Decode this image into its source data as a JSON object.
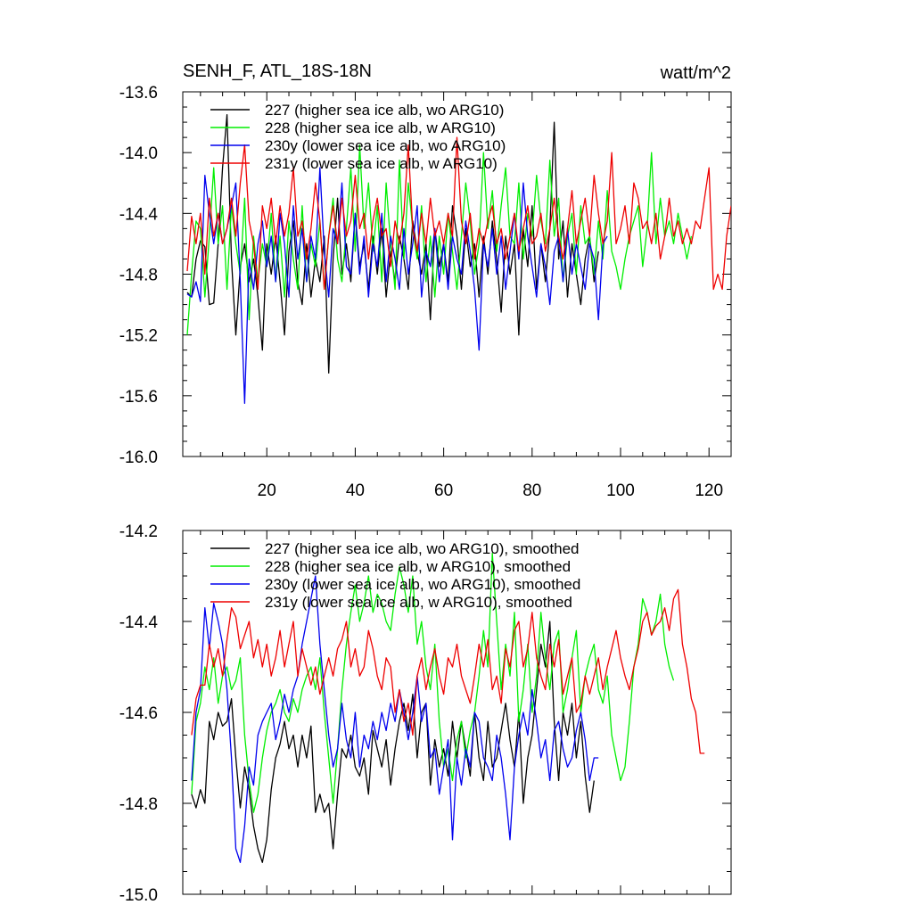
{
  "chart_data": [
    {
      "type": "line",
      "title": "SENH_F, ATL_18S-18N",
      "units": "watt/m^2",
      "xlim": [
        1,
        125
      ],
      "ylim": [
        -16.0,
        -13.6
      ],
      "xticks": [
        20,
        40,
        60,
        80,
        100,
        120
      ],
      "xtick_labels": [
        "20",
        "40",
        "60",
        "80",
        "100",
        "120"
      ],
      "yticks": [
        -16.0,
        -15.6,
        -15.2,
        -14.8,
        -14.4,
        -14.0,
        -13.6
      ],
      "ytick_labels": [
        "-16.0",
        "-15.6",
        "-15.2",
        "-14.8",
        "-14.4",
        "-14.0",
        "-13.6"
      ],
      "legend_position": "top-left",
      "series": [
        {
          "name": "227 (higher sea ice alb, wo ARG10)",
          "color": "#000000",
          "x_start": 2,
          "values": [
            -14.92,
            -14.95,
            -14.7,
            -14.58,
            -14.62,
            -15.0,
            -14.99,
            -14.6,
            -14.1,
            -13.75,
            -14.7,
            -15.2,
            -14.75,
            -14.6,
            -14.85,
            -14.7,
            -14.95,
            -15.3,
            -14.6,
            -14.8,
            -14.55,
            -14.85,
            -15.2,
            -14.65,
            -14.45,
            -14.85,
            -15.0,
            -14.6,
            -14.95,
            -14.7,
            -14.85,
            -14.55,
            -15.45,
            -14.7,
            -14.3,
            -14.8,
            -14.6,
            -14.85,
            -14.4,
            -14.75,
            -14.6,
            -14.9,
            -14.55,
            -14.8,
            -14.5,
            -14.95,
            -14.65,
            -14.85,
            -14.55,
            -14.7,
            -14.9,
            -14.45,
            -14.65,
            -14.8,
            -14.6,
            -15.1,
            -14.5,
            -14.75,
            -14.6,
            -14.85,
            -14.35,
            -14.55,
            -14.9,
            -14.5,
            -14.75,
            -14.6,
            -14.95,
            -14.55,
            -14.8,
            -14.45,
            -14.7,
            -15.05,
            -14.55,
            -14.8,
            -14.6,
            -15.2,
            -14.5,
            -14.75,
            -14.35,
            -14.9,
            -14.6,
            -14.85,
            -14.5,
            -13.8,
            -14.7,
            -14.45,
            -14.95,
            -14.6,
            -14.8,
            -15.0,
            -14.7,
            -14.55,
            -14.85,
            -14.65
          ]
        },
        {
          "name": "228 (higher sea ice alb, w ARG10)",
          "color": "#00ee00",
          "x_start": 2,
          "values": [
            -15.2,
            -14.8,
            -14.45,
            -14.5,
            -14.95,
            -14.55,
            -14.1,
            -14.6,
            -14.35,
            -14.9,
            -14.35,
            -14.6,
            -14.8,
            -14.3,
            -15.1,
            -14.55,
            -14.85,
            -14.6,
            -14.75,
            -14.4,
            -14.85,
            -14.55,
            -14.95,
            -14.45,
            -14.7,
            -14.9,
            -14.35,
            -14.85,
            -14.6,
            -14.75,
            -14.45,
            -14.9,
            -14.55,
            -14.3,
            -14.7,
            -14.85,
            -14.5,
            -14.1,
            -14.65,
            -13.95,
            -14.5,
            -14.2,
            -14.65,
            -14.35,
            -14.85,
            -14.2,
            -14.6,
            -14.9,
            -14.05,
            -14.7,
            -14.2,
            -14.5,
            -14.7,
            -14.35,
            -14.85,
            -14.55,
            -14.95,
            -14.55,
            -14.8,
            -14.4,
            -14.65,
            -14.9,
            -14.55,
            -14.2,
            -14.45,
            -14.8,
            -14.6,
            -14.0,
            -14.5,
            -14.25,
            -14.65,
            -14.35,
            -14.1,
            -14.55,
            -14.6,
            -14.2,
            -14.7,
            -14.4,
            -14.55,
            -14.15,
            -14.45,
            -14.6,
            -14.05,
            -14.55,
            -14.3,
            -14.85,
            -14.55,
            -14.4,
            -14.8,
            -14.35,
            -14.6,
            -14.55,
            -14.8,
            -14.45,
            -14.7,
            -14.25,
            -14.65,
            -14.75,
            -14.9,
            -14.7,
            -14.55,
            -14.45,
            -14.35,
            -14.75,
            -14.5,
            -14.0,
            -14.6,
            -14.3,
            -14.55,
            -14.45,
            -14.6,
            -14.4,
            -14.55,
            -14.7,
            -14.55
          ]
        },
        {
          "name": "230y (lower sea ice alb, wo ARG10)",
          "color": "#0000ee",
          "x_start": 2,
          "values": [
            -14.93,
            -14.95,
            -14.85,
            -14.98,
            -14.15,
            -14.4,
            -14.6,
            -14.4,
            -14.6,
            -14.5,
            -14.35,
            -14.2,
            -14.85,
            -15.65,
            -14.7,
            -14.9,
            -14.6,
            -14.45,
            -14.75,
            -14.55,
            -14.85,
            -14.4,
            -14.6,
            -14.95,
            -14.35,
            -14.7,
            -14.5,
            -14.85,
            -14.55,
            -14.7,
            -14.1,
            -14.65,
            -14.95,
            -14.5,
            -14.6,
            -14.2,
            -14.75,
            -14.8,
            -14.4,
            -14.8,
            -14.55,
            -14.95,
            -14.6,
            -14.75,
            -14.4,
            -14.85,
            -14.55,
            -14.7,
            -14.9,
            -14.5,
            -14.8,
            -14.6,
            -14.35,
            -14.95,
            -14.65,
            -14.75,
            -14.5,
            -14.85,
            -14.6,
            -14.9,
            -14.55,
            -14.7,
            -14.8,
            -14.45,
            -14.65,
            -14.9,
            -15.3,
            -14.6,
            -14.75,
            -14.5,
            -14.8,
            -14.55,
            -14.9,
            -14.65,
            -14.4,
            -14.7,
            -14.2,
            -14.55,
            -14.75,
            -14.95,
            -14.6,
            -14.75,
            -15.0,
            -14.65,
            -14.55,
            -14.85,
            -14.5,
            -14.8,
            -14.6,
            -14.75,
            -14.9,
            -14.6,
            -14.7,
            -15.1,
            -14.6,
            -14.55
          ]
        },
        {
          "name": "231y (lower sea ice alb, w ARG10)",
          "color": "#ee0000",
          "x_start": 2,
          "values": [
            -14.78,
            -14.42,
            -14.6,
            -14.4,
            -14.8,
            -14.3,
            -14.55,
            -14.4,
            -14.6,
            -14.5,
            -14.3,
            -14.55,
            -14.2,
            -13.95,
            -14.45,
            -14.6,
            -14.9,
            -14.35,
            -14.5,
            -14.3,
            -14.6,
            -14.35,
            -14.55,
            -14.4,
            -14.1,
            -14.55,
            -14.45,
            -14.7,
            -14.5,
            -14.2,
            -14.45,
            -14.9,
            -14.55,
            -14.35,
            -14.6,
            -14.3,
            -14.55,
            -14.45,
            -14.15,
            -14.5,
            -14.4,
            -14.7,
            -14.45,
            -14.3,
            -14.55,
            -14.5,
            -14.75,
            -14.45,
            -14.6,
            -14.4,
            -13.95,
            -14.5,
            -14.65,
            -14.4,
            -14.6,
            -14.3,
            -14.55,
            -14.45,
            -14.6,
            -14.4,
            -14.55,
            -13.9,
            -14.45,
            -14.6,
            -14.4,
            -14.7,
            -14.5,
            -14.6,
            -14.45,
            -14.35,
            -14.6,
            -14.5,
            -14.7,
            -14.55,
            -14.4,
            -14.65,
            -14.5,
            -14.35,
            -14.6,
            -14.55,
            -14.4,
            -14.65,
            -14.5,
            -14.3,
            -14.55,
            -14.7,
            -14.5,
            -14.25,
            -14.6,
            -14.45,
            -14.3,
            -14.55,
            -14.15,
            -14.4,
            -14.6,
            -14.45,
            -14.0,
            -14.6,
            -14.5,
            -14.35,
            -14.6,
            -14.2,
            -14.3,
            -14.5,
            -14.45,
            -14.6,
            -14.4,
            -14.7,
            -14.55,
            -14.3,
            -14.55,
            -14.45,
            -14.6,
            -14.5,
            -14.6,
            -14.45,
            -14.5,
            -14.3,
            -14.1,
            -14.9,
            -14.8,
            -14.9,
            -14.55,
            -14.35
          ]
        }
      ]
    },
    {
      "type": "line",
      "xlim": [
        1,
        125
      ],
      "ylim": [
        -15.0,
        -14.2
      ],
      "xticks": [
        20,
        40,
        60,
        80,
        100,
        120
      ],
      "yticks": [
        -15.0,
        -14.8,
        -14.6,
        -14.4,
        -14.2
      ],
      "ytick_labels": [
        "-15.0",
        "-14.8",
        "-14.6",
        "-14.4",
        "-14.2"
      ],
      "legend_position": "top-left",
      "series": [
        {
          "name": "227 (higher sea ice alb, wo ARG10), smoothed",
          "color": "#000000",
          "x_start": 3,
          "values": [
            -14.78,
            -14.81,
            -14.77,
            -14.8,
            -14.62,
            -14.66,
            -14.6,
            -14.63,
            -14.62,
            -14.57,
            -14.7,
            -14.81,
            -14.72,
            -14.77,
            -14.85,
            -14.9,
            -14.93,
            -14.88,
            -14.77,
            -14.7,
            -14.67,
            -14.62,
            -14.68,
            -14.65,
            -14.72,
            -14.65,
            -14.7,
            -14.63,
            -14.82,
            -14.78,
            -14.82,
            -14.8,
            -14.9,
            -14.78,
            -14.68,
            -14.7,
            -14.65,
            -14.72,
            -14.74,
            -14.7,
            -14.78,
            -14.64,
            -14.68,
            -14.72,
            -14.66,
            -14.76,
            -14.68,
            -14.62,
            -14.58,
            -14.64,
            -14.56,
            -14.7,
            -14.6,
            -14.58,
            -14.76,
            -14.66,
            -14.72,
            -14.68,
            -14.74,
            -14.62,
            -14.7,
            -14.62,
            -14.68,
            -14.74,
            -14.6,
            -14.7,
            -14.75,
            -14.62,
            -14.72,
            -14.7,
            -14.64,
            -14.58,
            -14.66,
            -14.72,
            -14.6,
            -14.8,
            -14.7,
            -14.65,
            -14.55,
            -14.45,
            -14.5,
            -14.4,
            -14.62,
            -14.75,
            -14.6,
            -14.65,
            -14.58,
            -14.7,
            -14.62,
            -14.74,
            -14.82,
            -14.75
          ]
        },
        {
          "name": "228 (higher sea ice alb, w ARG10), smoothed",
          "color": "#00ee00",
          "x_start": 3,
          "values": [
            -14.78,
            -14.62,
            -14.58,
            -14.5,
            -14.55,
            -14.48,
            -14.58,
            -14.52,
            -14.5,
            -14.55,
            -14.53,
            -14.48,
            -14.65,
            -14.75,
            -14.82,
            -14.78,
            -14.7,
            -14.64,
            -14.6,
            -14.58,
            -14.55,
            -14.6,
            -14.62,
            -14.57,
            -14.6,
            -14.55,
            -14.52,
            -14.5,
            -14.55,
            -14.48,
            -14.6,
            -14.7,
            -14.8,
            -14.68,
            -14.55,
            -14.45,
            -14.38,
            -14.32,
            -14.4,
            -14.36,
            -14.3,
            -14.38,
            -14.34,
            -14.36,
            -14.4,
            -14.42,
            -14.34,
            -14.28,
            -14.32,
            -14.38,
            -14.3,
            -14.45,
            -14.4,
            -14.5,
            -14.55,
            -14.45,
            -14.62,
            -14.72,
            -14.68,
            -14.75,
            -14.66,
            -14.62,
            -14.7,
            -14.64,
            -14.6,
            -14.52,
            -14.42,
            -14.5,
            -14.25,
            -14.4,
            -14.55,
            -14.45,
            -14.52,
            -14.38,
            -14.62,
            -14.55,
            -14.45,
            -14.6,
            -14.52,
            -14.38,
            -14.48,
            -14.55,
            -14.45,
            -14.42,
            -14.6,
            -14.55,
            -14.48,
            -14.42,
            -14.6,
            -14.52,
            -14.48,
            -14.45,
            -14.55,
            -14.58,
            -14.52,
            -14.65,
            -14.7,
            -14.75,
            -14.72,
            -14.62,
            -14.5,
            -14.45,
            -14.35,
            -14.38,
            -14.43,
            -14.4,
            -14.34,
            -14.45,
            -14.5,
            -14.53
          ]
        },
        {
          "name": "230y (lower sea ice alb, wo ARG10), smoothed",
          "color": "#0000ee",
          "x_start": 3,
          "values": [
            -14.75,
            -14.6,
            -14.55,
            -14.37,
            -14.46,
            -14.36,
            -14.4,
            -14.45,
            -14.55,
            -14.7,
            -14.9,
            -14.93,
            -14.85,
            -14.72,
            -14.76,
            -14.65,
            -14.62,
            -14.6,
            -14.58,
            -14.66,
            -14.62,
            -14.56,
            -14.6,
            -14.55,
            -14.52,
            -14.45,
            -14.4,
            -14.35,
            -14.3,
            -14.45,
            -14.55,
            -14.65,
            -14.72,
            -14.68,
            -14.58,
            -14.66,
            -14.7,
            -14.6,
            -14.72,
            -14.65,
            -14.68,
            -14.62,
            -14.66,
            -14.6,
            -14.64,
            -14.58,
            -14.62,
            -14.55,
            -14.6,
            -14.66,
            -14.6,
            -14.52,
            -14.62,
            -14.58,
            -14.7,
            -14.68,
            -14.78,
            -14.72,
            -14.66,
            -14.88,
            -14.7,
            -14.76,
            -14.68,
            -14.72,
            -14.6,
            -14.62,
            -14.7,
            -14.72,
            -14.75,
            -14.65,
            -14.7,
            -14.78,
            -14.88,
            -14.72,
            -14.65,
            -14.6,
            -14.65,
            -14.55,
            -14.62,
            -14.7,
            -14.66,
            -14.75,
            -14.64,
            -14.62,
            -14.68,
            -14.72,
            -14.7,
            -14.64,
            -14.6,
            -14.66,
            -14.75,
            -14.7,
            -14.7
          ]
        },
        {
          "name": "231y (lower sea ice alb, w ARG10), smoothed",
          "color": "#ee0000",
          "x_start": 3,
          "values": [
            -14.65,
            -14.57,
            -14.54,
            -14.54,
            -14.45,
            -14.5,
            -14.46,
            -14.52,
            -14.44,
            -14.37,
            -14.39,
            -14.46,
            -14.43,
            -14.4,
            -14.48,
            -14.44,
            -14.5,
            -14.45,
            -14.52,
            -14.48,
            -14.42,
            -14.5,
            -14.45,
            -14.4,
            -14.52,
            -14.46,
            -14.5,
            -14.54,
            -14.5,
            -14.56,
            -14.52,
            -14.48,
            -14.52,
            -14.46,
            -14.44,
            -14.4,
            -14.5,
            -14.46,
            -14.52,
            -14.5,
            -14.42,
            -14.46,
            -14.52,
            -14.55,
            -14.48,
            -14.5,
            -14.6,
            -14.55,
            -14.62,
            -14.58,
            -14.65,
            -14.52,
            -14.48,
            -14.55,
            -14.5,
            -14.46,
            -14.52,
            -14.56,
            -14.48,
            -14.5,
            -14.45,
            -14.52,
            -14.55,
            -14.58,
            -14.52,
            -14.45,
            -14.5,
            -14.44,
            -14.55,
            -14.52,
            -14.58,
            -14.46,
            -14.5,
            -14.42,
            -14.4,
            -14.5,
            -14.46,
            -14.38,
            -14.48,
            -14.52,
            -14.55,
            -14.45,
            -14.5,
            -14.44,
            -14.56,
            -14.52,
            -14.48,
            -14.6,
            -14.58,
            -14.52,
            -14.56,
            -14.52,
            -14.48,
            -14.55,
            -14.5,
            -14.46,
            -14.42,
            -14.48,
            -14.52,
            -14.55,
            -14.5,
            -14.46,
            -14.4,
            -14.38,
            -14.43,
            -14.41,
            -14.4,
            -14.37,
            -14.42,
            -14.35,
            -14.33,
            -14.45,
            -14.5,
            -14.57,
            -14.6,
            -14.69,
            -14.69
          ]
        }
      ]
    }
  ]
}
